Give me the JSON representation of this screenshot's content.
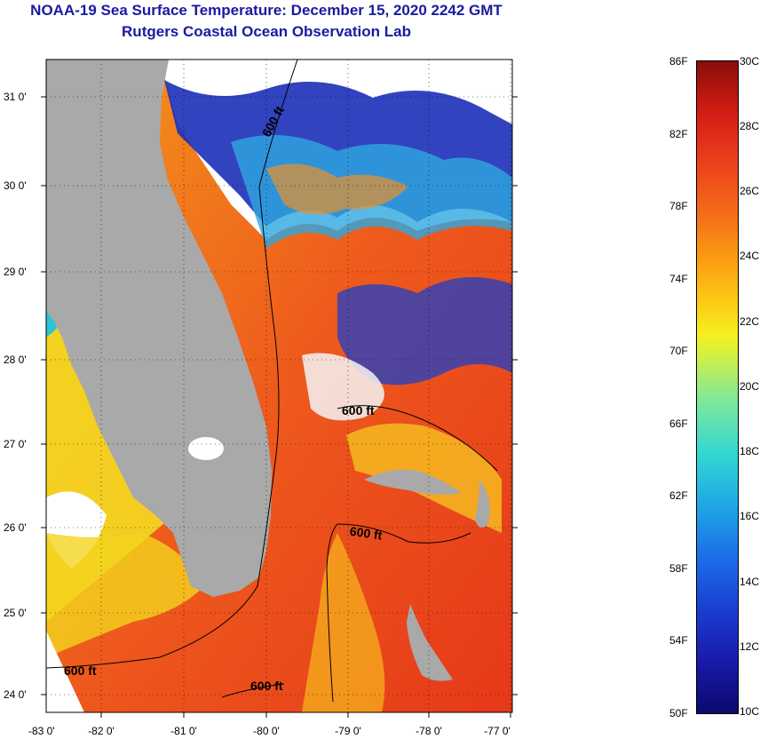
{
  "header": {
    "title_line1": "NOAA-19 Sea Surface Temperature:  December 15, 2020 2242 GMT",
    "title_line2": "Rutgers Coastal Ocean Observation Lab"
  },
  "map": {
    "lat_labels": [
      "31 0'",
      "30 0'",
      "29 0'",
      "28 0'",
      "27 0'",
      "26 0'",
      "25 0'",
      "24 0'"
    ],
    "lon_labels": [
      "-83 0'",
      "-82 0'",
      "-81 0'",
      "-80 0'",
      "-79 0'",
      "-78 0'",
      "-77 0'"
    ],
    "contour_labels": [
      "600 ft",
      "600 ft",
      "600 ft",
      "600 ft",
      "600 ft"
    ],
    "colors": {
      "land": "#a9a9a9",
      "warm": "#f07820",
      "hot": "#e8361c",
      "cold": "#1a1aa0",
      "cloud": "#ffffff"
    }
  },
  "colorbar": {
    "fahrenheit": [
      "86F",
      "82F",
      "78F",
      "74F",
      "70F",
      "66F",
      "62F",
      "58F",
      "54F",
      "50F"
    ],
    "celsius": [
      "30C",
      "28C",
      "26C",
      "24C",
      "22C",
      "20C",
      "18C",
      "16C",
      "14C",
      "12C",
      "10C"
    ]
  }
}
